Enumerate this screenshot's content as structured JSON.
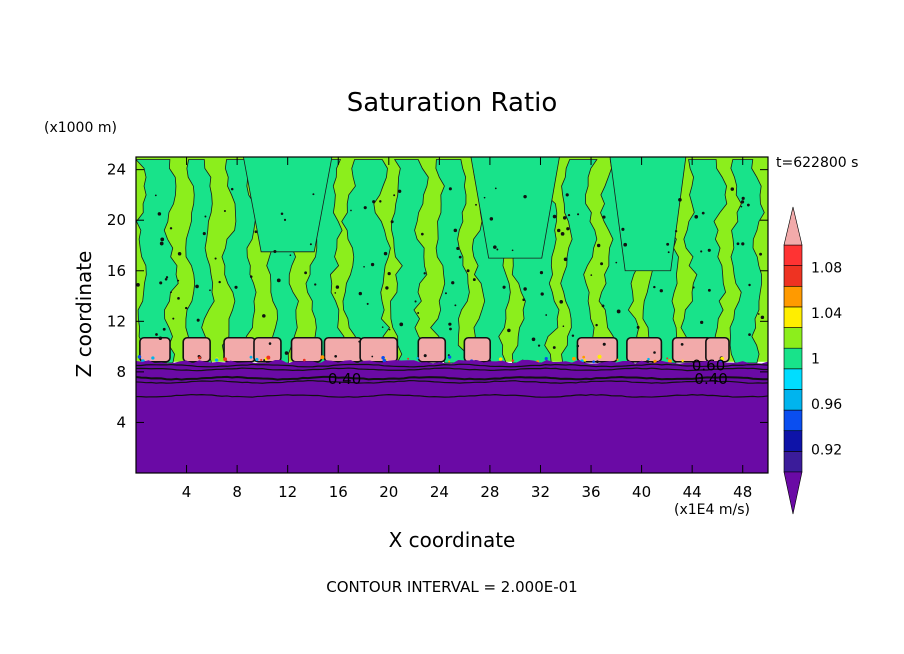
{
  "header": {
    "title": "Saturation Ratio",
    "y_unit": "(x1000 m)",
    "timestamp": "t=622800 s",
    "x_unit": "(x1E4 m/s)",
    "footer": "CONTOUR INTERVAL = 2.000E-01"
  },
  "chart_data": {
    "type": "heatmap",
    "title": "Saturation Ratio",
    "xlabel": "X coordinate",
    "ylabel": "Z coordinate",
    "xlim": [
      0,
      50
    ],
    "ylim": [
      0,
      25
    ],
    "x_ticks": [
      "4",
      "8",
      "12",
      "16",
      "20",
      "24",
      "28",
      "32",
      "36",
      "40",
      "44",
      "48"
    ],
    "y_ticks": [
      "4",
      "8",
      "12",
      "16",
      "20",
      "24"
    ],
    "contour_interval": 0.2,
    "contour_labels": [
      {
        "x": 16.5,
        "z": 7.5,
        "text": "0.40"
      },
      {
        "x": 45.5,
        "z": 7.5,
        "text": "0.40"
      },
      {
        "x": 45.3,
        "z": 8.6,
        "text": "0.60"
      }
    ],
    "colorbar": {
      "tick_labels": [
        "0.92",
        "0.96",
        "1",
        "1.04",
        "1.08"
      ],
      "tick_values": [
        0.92,
        0.96,
        1.0,
        1.04,
        1.08
      ],
      "levels": [
        0.9,
        0.92,
        0.94,
        0.96,
        0.98,
        1.0,
        1.02,
        1.04,
        1.06,
        1.08,
        1.1
      ],
      "colors": [
        "#3b1c9a",
        "#0e13a8",
        "#0a4ef0",
        "#00b4ee",
        "#00ddff",
        "#18e38a",
        "#8cee1c",
        "#ffee00",
        "#ff9a00",
        "#ee3322",
        "#ff3333"
      ],
      "under_color": "#6a0aa5",
      "over_color": "#f2aaaa"
    },
    "regions": {
      "stable_layer_color": "#6a0aa5",
      "cloud_base_z": 8.8,
      "supersaturated_color": "#f2aaaa",
      "near_saturation_colors": [
        "#18e38a",
        "#8cee1c"
      ]
    }
  }
}
